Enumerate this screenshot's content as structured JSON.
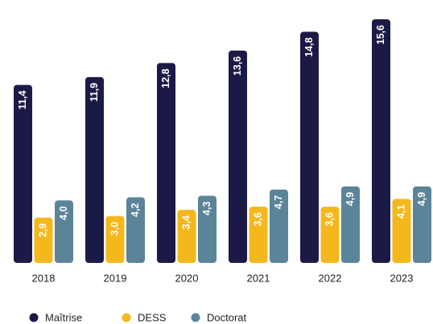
{
  "chart_data": {
    "type": "bar",
    "categories": [
      "2018",
      "2019",
      "2020",
      "2021",
      "2022",
      "2023"
    ],
    "series": [
      {
        "name": "Maîtrise",
        "color": "#1b1a47",
        "values": [
          11.4,
          11.9,
          12.8,
          13.6,
          14.8,
          15.6
        ],
        "value_labels": [
          "11,4",
          "11,9",
          "12,8",
          "13,6",
          "14,8",
          "15,6"
        ]
      },
      {
        "name": "DESS",
        "color": "#f5b81c",
        "values": [
          2.9,
          3.0,
          3.4,
          3.6,
          3.6,
          4.1
        ],
        "value_labels": [
          "2,9",
          "3,0",
          "3,4",
          "3,6",
          "3,6",
          "4,1"
        ]
      },
      {
        "name": "Doctorat",
        "color": "#5b8499",
        "values": [
          4.0,
          4.2,
          4.3,
          4.7,
          4.9,
          4.9
        ],
        "value_labels": [
          "4,0",
          "4,2",
          "4,3",
          "4,7",
          "4,9",
          "4,9"
        ]
      }
    ],
    "legend": "bottom-left"
  }
}
